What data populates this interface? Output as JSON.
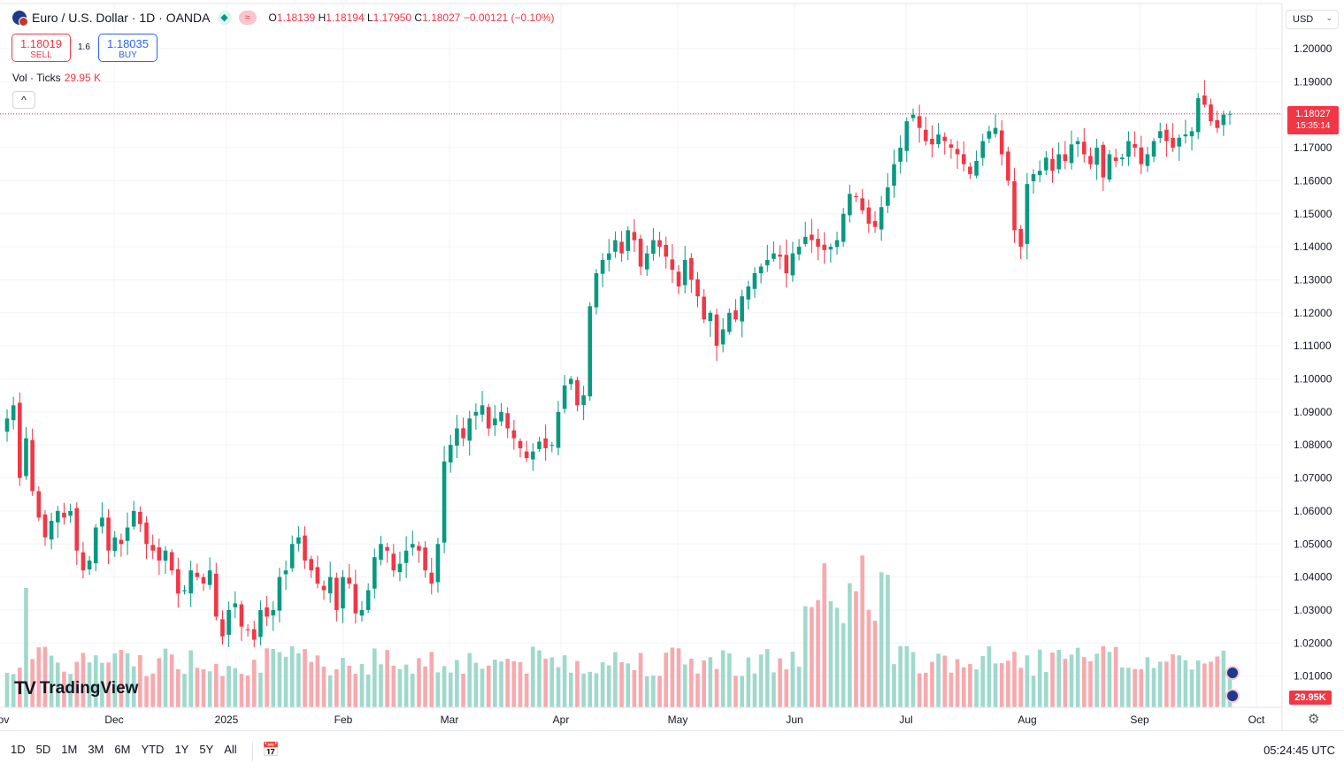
{
  "header": {
    "symbol_title": "Euro / U.S. Dollar · 1D · OANDA",
    "pill_green": "◆",
    "pill_red": "≈",
    "ohlc": {
      "o_key": "O",
      "o_val": "1.18139",
      "h_key": "H",
      "h_val": "1.18194",
      "l_key": "L",
      "l_val": "1.17950",
      "c_key": "C",
      "c_val": "1.18027",
      "change": "−0.00121 (−0.10%)"
    }
  },
  "trade": {
    "sell_price": "1.18019",
    "sell_label": "SELL",
    "spread": "1.6",
    "buy_price": "1.18035",
    "buy_label": "BUY"
  },
  "volume_legend": {
    "label": "Vol · Ticks",
    "value": "29.95 K"
  },
  "collapse_icon": "^",
  "currency_selector": "USD",
  "last_price": {
    "price": "1.18027",
    "countdown": "15:35:14"
  },
  "volume_last_label": "29.95K",
  "logo_text": "TradingView",
  "bottom": {
    "ranges": [
      "1D",
      "5D",
      "1M",
      "3M",
      "6M",
      "YTD",
      "1Y",
      "5Y",
      "All"
    ],
    "clock": "05:24:45 UTC"
  },
  "colors": {
    "up": "#089981",
    "down": "#f23645",
    "up_volume": "#9fd9cc",
    "down_volume": "#f7a9ae",
    "grid": "#f0f3fa"
  },
  "icons": [
    "flag-icon",
    "chevron-up-icon",
    "chevron-down-icon",
    "calendar-icon",
    "gear-icon",
    "event-flag-icon"
  ],
  "chart_data": {
    "type": "candlestick",
    "instrument": "EUR/USD",
    "timeframe": "1D",
    "ylim": [
      1.0,
      1.2
    ],
    "y_ticks": [
      "1.20000",
      "1.19000",
      "1.18000",
      "1.17000",
      "1.16000",
      "1.15000",
      "1.14000",
      "1.13000",
      "1.12000",
      "1.11000",
      "1.10000",
      "1.09000",
      "1.08000",
      "1.07000",
      "1.06000",
      "1.05000",
      "1.04000",
      "1.03000",
      "1.02000",
      "1.01000"
    ],
    "x_ticks": [
      "ov",
      "Dec",
      "2025",
      "Feb",
      "Mar",
      "Apr",
      "May",
      "Jun",
      "Jul",
      "Aug",
      "Sep",
      "Oct"
    ],
    "last_close": 1.18027,
    "closes": [
      1.088,
      1.092,
      1.07,
      1.082,
      1.066,
      1.058,
      1.052,
      1.057,
      1.06,
      1.058,
      1.06,
      1.048,
      1.042,
      1.045,
      1.055,
      1.058,
      1.048,
      1.052,
      1.05,
      1.055,
      1.06,
      1.056,
      1.05,
      1.048,
      1.045,
      1.048,
      1.042,
      1.035,
      1.036,
      1.042,
      1.04,
      1.038,
      1.042,
      1.028,
      1.022,
      1.03,
      1.032,
      1.025,
      1.024,
      1.021,
      1.03,
      1.028,
      1.03,
      1.04,
      1.042,
      1.05,
      1.052,
      1.045,
      1.042,
      1.038,
      1.036,
      1.04,
      1.03,
      1.04,
      1.038,
      1.029,
      1.03,
      1.036,
      1.046,
      1.05,
      1.048,
      1.042,
      1.044,
      1.048,
      1.05,
      1.048,
      1.042,
      1.038,
      1.05,
      1.075,
      1.08,
      1.085,
      1.082,
      1.088,
      1.09,
      1.092,
      1.085,
      1.088,
      1.09,
      1.085,
      1.082,
      1.079,
      1.076,
      1.078,
      1.081,
      1.079,
      1.08,
      1.09,
      1.098,
      1.1,
      1.092,
      1.095,
      1.122,
      1.132,
      1.136,
      1.138,
      1.142,
      1.138,
      1.145,
      1.142,
      1.134,
      1.138,
      1.142,
      1.14,
      1.137,
      1.133,
      1.128,
      1.136,
      1.13,
      1.125,
      1.118,
      1.12,
      1.11,
      1.115,
      1.12,
      1.118,
      1.125,
      1.128,
      1.132,
      1.134,
      1.136,
      1.138,
      1.137,
      1.132,
      1.138,
      1.14,
      1.143,
      1.142,
      1.14,
      1.139,
      1.14,
      1.142,
      1.15,
      1.156,
      1.155,
      1.151,
      1.147,
      1.146,
      1.152,
      1.158,
      1.165,
      1.17,
      1.178,
      1.18,
      1.176,
      1.172,
      1.171,
      1.174,
      1.172,
      1.17,
      1.168,
      1.165,
      1.162,
      1.166,
      1.172,
      1.175,
      1.176,
      1.168,
      1.16,
      1.145,
      1.14,
      1.159,
      1.162,
      1.163,
      1.167,
      1.163,
      1.168,
      1.166,
      1.171,
      1.172,
      1.168,
      1.165,
      1.17,
      1.161,
      1.168,
      1.166,
      1.167,
      1.172,
      1.17,
      1.165,
      1.168,
      1.172,
      1.175,
      1.172,
      1.17,
      1.173,
      1.174,
      1.175,
      1.185,
      1.183,
      1.178,
      1.176,
      1.18,
      1.18027
    ]
  }
}
